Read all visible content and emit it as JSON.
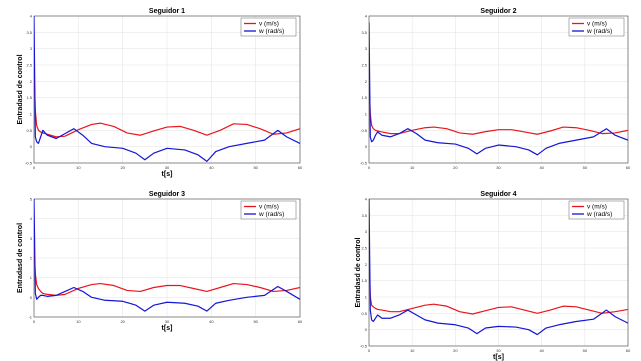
{
  "colors": {
    "v": "#e8161c",
    "w": "#1515d6",
    "grid": "#e6e6e6",
    "axis": "#444444"
  },
  "chart_data": [
    {
      "type": "line",
      "title": "Seguidor 1",
      "xlabel": "t[s]",
      "ylabel": "Entradasd de control",
      "xlim": [
        0,
        60
      ],
      "ylim": [
        -0.5,
        4
      ],
      "xticks": [
        "0",
        "10",
        "20",
        "30",
        "40",
        "50",
        "60"
      ],
      "yticks": [
        "-0.5",
        "0",
        "0.5",
        "1",
        "1.5",
        "2",
        "2.5",
        "3",
        "3.5",
        "4"
      ],
      "grid": true,
      "legend": "top-right",
      "series": [
        {
          "name": "v (m/s)",
          "x": [
            0,
            0.3,
            0.6,
            1,
            1.5,
            2,
            3,
            5,
            7,
            10,
            13,
            15,
            18,
            21,
            24,
            27,
            30,
            33,
            36,
            39,
            42,
            45,
            48,
            51,
            54,
            57,
            60
          ],
          "y": [
            2.3,
            1.1,
            0.65,
            0.5,
            0.45,
            0.42,
            0.38,
            0.3,
            0.32,
            0.52,
            0.68,
            0.72,
            0.62,
            0.42,
            0.35,
            0.48,
            0.6,
            0.62,
            0.5,
            0.35,
            0.5,
            0.7,
            0.68,
            0.55,
            0.38,
            0.42,
            0.55
          ]
        },
        {
          "name": "w (rad/s)",
          "x": [
            0,
            0.3,
            0.6,
            1,
            1.5,
            2,
            3,
            5,
            7,
            9,
            11,
            13,
            16,
            20,
            23,
            25,
            27,
            30,
            34,
            37,
            39,
            41,
            44,
            48,
            52,
            55,
            57,
            60
          ],
          "y": [
            4.0,
            0.3,
            0.15,
            0.1,
            0.3,
            0.5,
            0.35,
            0.25,
            0.4,
            0.55,
            0.35,
            0.1,
            0.0,
            -0.05,
            -0.2,
            -0.4,
            -0.2,
            -0.05,
            -0.1,
            -0.25,
            -0.45,
            -0.15,
            0.0,
            0.1,
            0.2,
            0.5,
            0.3,
            0.1
          ]
        }
      ]
    },
    {
      "type": "line",
      "title": "Seguidor 2",
      "xlabel": "",
      "ylabel": "",
      "xlim": [
        0,
        60
      ],
      "ylim": [
        -0.5,
        4
      ],
      "xticks": [
        "0",
        "10",
        "20",
        "30",
        "40",
        "50",
        "60"
      ],
      "yticks": [
        "-0.5",
        "0",
        "0.5",
        "1",
        "1.5",
        "2",
        "2.5",
        "3",
        "3.5",
        "4"
      ],
      "grid": true,
      "legend": "top-right",
      "series": [
        {
          "name": "v (m/s)",
          "x": [
            0,
            0.3,
            0.6,
            1,
            1.5,
            2,
            3,
            5,
            7,
            10,
            13,
            15,
            18,
            21,
            24,
            27,
            30,
            33,
            36,
            39,
            42,
            45,
            48,
            51,
            54,
            57,
            60
          ],
          "y": [
            2.0,
            1.0,
            0.65,
            0.55,
            0.5,
            0.48,
            0.45,
            0.4,
            0.4,
            0.5,
            0.58,
            0.6,
            0.55,
            0.42,
            0.38,
            0.46,
            0.52,
            0.52,
            0.45,
            0.38,
            0.48,
            0.6,
            0.58,
            0.5,
            0.4,
            0.42,
            0.5
          ]
        },
        {
          "name": "w (rad/s)",
          "x": [
            0,
            0.3,
            0.6,
            1,
            1.5,
            2,
            3,
            5,
            7,
            9,
            11,
            13,
            16,
            20,
            23,
            25,
            27,
            30,
            34,
            37,
            39,
            41,
            44,
            48,
            52,
            55,
            57,
            60
          ],
          "y": [
            3.8,
            0.3,
            0.15,
            0.2,
            0.35,
            0.45,
            0.35,
            0.3,
            0.4,
            0.55,
            0.4,
            0.2,
            0.12,
            0.08,
            -0.05,
            -0.22,
            -0.05,
            0.05,
            0.0,
            -0.1,
            -0.25,
            -0.05,
            0.1,
            0.2,
            0.3,
            0.55,
            0.35,
            0.2
          ]
        }
      ]
    },
    {
      "type": "line",
      "title": "Seguidor 3",
      "xlabel": "t[s]",
      "ylabel": "Entradasd de control",
      "xlim": [
        0,
        60
      ],
      "ylim": [
        -1,
        5
      ],
      "xticks": [
        "0",
        "10",
        "20",
        "30",
        "40",
        "50",
        "60"
      ],
      "yticks": [
        "-1",
        "0",
        "1",
        "2",
        "3",
        "4",
        "5"
      ],
      "grid": true,
      "legend": "top-right",
      "series": [
        {
          "name": "v (m/s)",
          "x": [
            0,
            0.3,
            0.6,
            1,
            1.5,
            2,
            3,
            5,
            7,
            10,
            13,
            15,
            18,
            21,
            24,
            27,
            30,
            33,
            36,
            39,
            42,
            45,
            48,
            51,
            54,
            57,
            60
          ],
          "y": [
            2.6,
            1.2,
            0.65,
            0.45,
            0.3,
            0.2,
            0.15,
            0.1,
            0.15,
            0.45,
            0.65,
            0.7,
            0.6,
            0.35,
            0.3,
            0.5,
            0.6,
            0.6,
            0.45,
            0.3,
            0.5,
            0.7,
            0.65,
            0.5,
            0.3,
            0.35,
            0.5
          ]
        },
        {
          "name": "w (rad/s)",
          "x": [
            0,
            0.3,
            0.6,
            1,
            1.5,
            2,
            3,
            5,
            7,
            9,
            11,
            13,
            16,
            20,
            23,
            25,
            27,
            30,
            34,
            37,
            39,
            41,
            44,
            48,
            52,
            55,
            57,
            60
          ],
          "y": [
            5.0,
            0.2,
            -0.1,
            0.0,
            0.1,
            0.1,
            0.05,
            0.1,
            0.3,
            0.5,
            0.3,
            0.0,
            -0.15,
            -0.2,
            -0.4,
            -0.7,
            -0.4,
            -0.25,
            -0.3,
            -0.45,
            -0.7,
            -0.3,
            -0.15,
            0.0,
            0.1,
            0.55,
            0.3,
            -0.1
          ]
        }
      ]
    },
    {
      "type": "line",
      "title": "Seguidor 4",
      "xlabel": "t[s]",
      "ylabel": "Entradasd de control",
      "xlim": [
        0,
        60
      ],
      "ylim": [
        -0.5,
        4
      ],
      "xticks": [
        "0",
        "10",
        "20",
        "30",
        "40",
        "50",
        "60"
      ],
      "yticks": [
        "-0.5",
        "0",
        "0.5",
        "1",
        "1.5",
        "2",
        "2.5",
        "3",
        "3.5",
        "4"
      ],
      "grid": true,
      "legend": "top-right",
      "series": [
        {
          "name": "v (m/s)",
          "x": [
            0,
            0.3,
            0.6,
            1,
            1.5,
            2,
            3,
            5,
            7,
            10,
            13,
            15,
            18,
            21,
            24,
            27,
            30,
            33,
            36,
            39,
            42,
            45,
            48,
            51,
            54,
            57,
            60
          ],
          "y": [
            2.2,
            1.0,
            0.75,
            0.7,
            0.65,
            0.62,
            0.6,
            0.55,
            0.55,
            0.65,
            0.75,
            0.78,
            0.72,
            0.55,
            0.48,
            0.58,
            0.68,
            0.7,
            0.6,
            0.5,
            0.6,
            0.72,
            0.7,
            0.6,
            0.5,
            0.55,
            0.62
          ]
        },
        {
          "name": "w (rad/s)",
          "x": [
            0,
            0.3,
            0.6,
            1,
            1.5,
            2,
            3,
            5,
            7,
            9,
            11,
            13,
            16,
            20,
            23,
            25,
            27,
            30,
            34,
            37,
            39,
            41,
            44,
            48,
            52,
            55,
            57,
            60
          ],
          "y": [
            4.0,
            0.6,
            0.3,
            0.25,
            0.35,
            0.45,
            0.35,
            0.35,
            0.45,
            0.6,
            0.45,
            0.3,
            0.2,
            0.15,
            0.05,
            -0.12,
            0.05,
            0.1,
            0.08,
            0.0,
            -0.15,
            0.05,
            0.15,
            0.25,
            0.32,
            0.6,
            0.4,
            0.2
          ]
        }
      ]
    }
  ]
}
